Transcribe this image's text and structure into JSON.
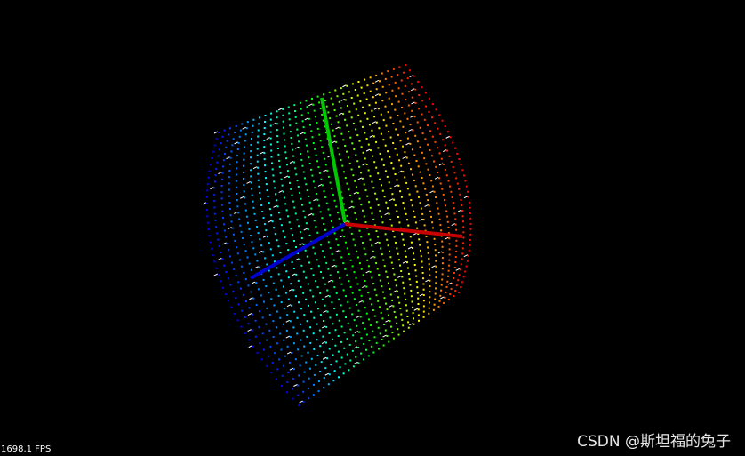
{
  "viewer": {
    "fps_label": "1698.1 FPS",
    "watermark": "CSDN @斯坦福的兔子"
  }
}
